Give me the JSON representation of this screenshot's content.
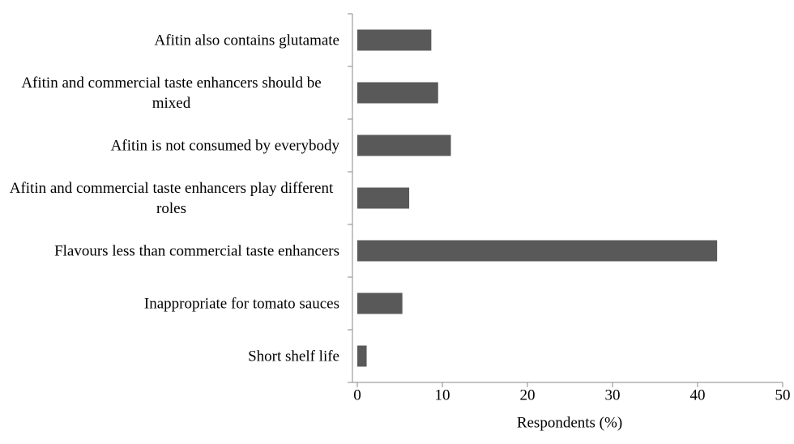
{
  "chart_data": {
    "type": "bar",
    "orientation": "horizontal",
    "categories": [
      "Afitin also contains glutamate",
      "Afitin and commercial taste enhancers should be mixed",
      "Afitin is not consumed by everybody",
      "Afitin and commercial taste enhancers play different roles",
      "Flavours less than commercial taste enhancers",
      "Inappropriate for tomato sauces",
      "Short shelf life"
    ],
    "values": [
      8.7,
      9.5,
      11.0,
      6.1,
      42.3,
      5.3,
      1.1
    ],
    "color": "#595959",
    "xlabel": "Respondents (%)",
    "xlim": [
      0,
      50
    ],
    "xticks": [
      0,
      10,
      20,
      30,
      40,
      50
    ],
    "grid": false
  }
}
